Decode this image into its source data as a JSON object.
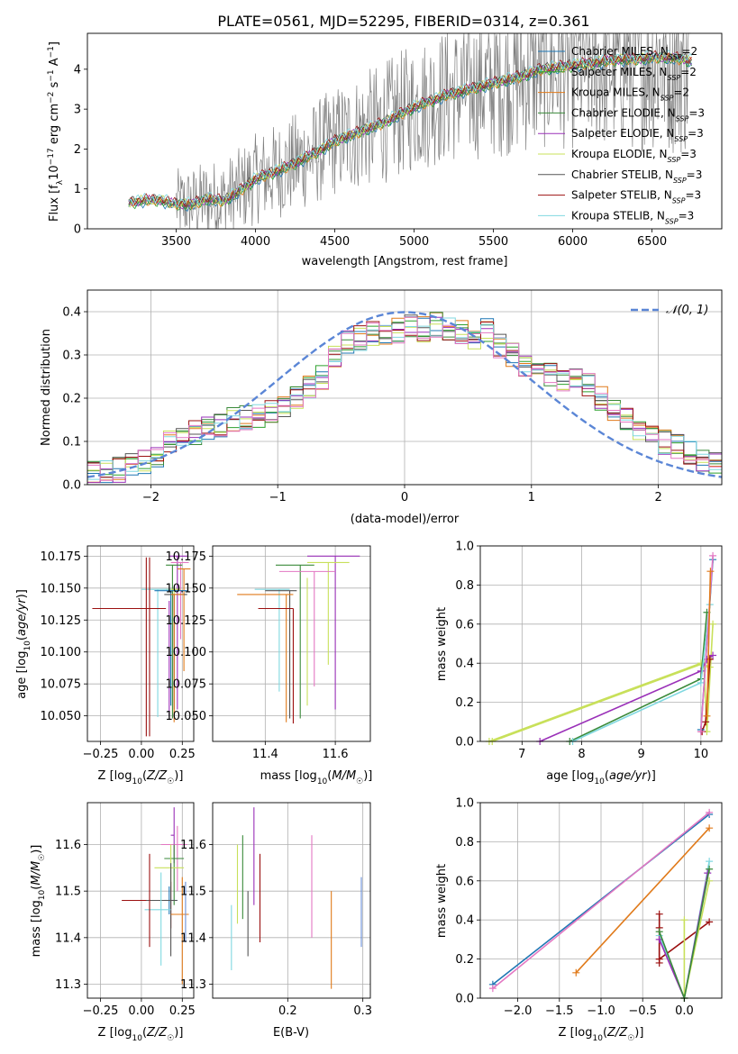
{
  "figure": {
    "title": "PLATE=0561, MJD=52295, FIBERID=0314, z=0.361"
  },
  "colors": {
    "chabrier_miles": "#1f77b4",
    "salpeter_miles": "#2ca02c",
    "kroupa_miles": "#e07a1a",
    "chabrier_elodie": "#3a8a3a",
    "salpeter_elodie": "#9a30b8",
    "kroupa_elodie": "#c8e05a",
    "chabrier_stelib": "#555555",
    "salpeter_stelib": "#9b1010",
    "kroupa_stelib": "#80d8e0",
    "pink": "#e377c2",
    "steelblue": "#6a8fd8",
    "data": "#808080",
    "normal": "#5b86d6"
  },
  "chart_data": [
    {
      "id": "spectrum",
      "type": "line",
      "title": "PLATE=0561, MJD=52295, FIBERID=0314, z=0.361",
      "xlabel": "wavelength [Angstrom, rest frame]",
      "ylabel": "Flux [f_λ 10^-17 erg cm^-2 s^-1 A^-1]",
      "xlim": [
        2940,
        6940
      ],
      "ylim": [
        0,
        4.9
      ],
      "xticks": [
        3500,
        4000,
        4500,
        5000,
        5500,
        6000,
        6500
      ],
      "yticks": [
        0,
        1,
        2,
        3,
        4
      ],
      "grid": false,
      "legend_position": "top-right",
      "legend": [
        {
          "base": "Chabrier MILES, N",
          "sub": "SSP",
          "suffix": "=2",
          "color": "#1f77b4"
        },
        {
          "base": "Salpeter MILES, N",
          "sub": "SSP",
          "suffix": "=2",
          "color": "#2ca02c"
        },
        {
          "base": "Kroupa MILES, N",
          "sub": "SSP",
          "suffix": "=2",
          "color": "#e07a1a"
        },
        {
          "base": "Chabrier ELODIE, N",
          "sub": "SSP",
          "suffix": "=3",
          "color": "#3a8a3a"
        },
        {
          "base": "Salpeter ELODIE, N",
          "sub": "SSP",
          "suffix": "=3",
          "color": "#9a30b8"
        },
        {
          "base": "Kroupa ELODIE, N",
          "sub": "SSP",
          "suffix": "=3",
          "color": "#c8e05a"
        },
        {
          "base": "Chabrier STELIB, N",
          "sub": "SSP",
          "suffix": "=3",
          "color": "#555555"
        },
        {
          "base": "Salpeter STELIB, N",
          "sub": "SSP",
          "suffix": "=3",
          "color": "#9b1010"
        },
        {
          "base": "Kroupa STELIB, N",
          "sub": "SSP",
          "suffix": "=3",
          "color": "#80d8e0"
        }
      ],
      "model_continuum": {
        "x": [
          3200,
          3300,
          3400,
          3500,
          3600,
          3700,
          3800,
          3900,
          4000,
          4100,
          4200,
          4300,
          4400,
          4500,
          4600,
          4700,
          4800,
          4900,
          5000,
          5100,
          5200,
          5300,
          5400,
          5500,
          5600,
          5700,
          5800,
          5900,
          6000,
          6100,
          6200,
          6300,
          6400,
          6500,
          6600,
          6700,
          6750
        ],
        "y": [
          0.65,
          0.72,
          0.72,
          0.62,
          0.62,
          0.75,
          0.7,
          0.95,
          1.25,
          1.4,
          1.55,
          1.75,
          1.95,
          2.2,
          2.35,
          2.5,
          2.65,
          2.85,
          3.05,
          3.2,
          3.35,
          3.45,
          3.55,
          3.65,
          3.75,
          3.85,
          4.0,
          4.05,
          4.1,
          4.15,
          4.2,
          4.25,
          4.25,
          4.3,
          4.3,
          4.25,
          4.2
        ]
      },
      "data_range": [
        3500,
        6750
      ]
    },
    {
      "id": "residuals",
      "type": "line",
      "xlabel": "(data-model)/error",
      "ylabel": "Normed distribution",
      "xlim": [
        -2.5,
        2.5
      ],
      "ylim": [
        0,
        0.45
      ],
      "xticks": [
        -2,
        -1,
        0,
        1,
        2
      ],
      "yticks": [
        0.0,
        0.1,
        0.2,
        0.3,
        0.4
      ],
      "grid": true,
      "legend_position": "top-right",
      "legend": [
        {
          "label": "𝒩(0, 1)",
          "color": "#5b86d6",
          "style": "dashed"
        }
      ],
      "bin_width": 0.1,
      "histogram_centers": [
        -2.45,
        -2.35,
        -2.25,
        -2.15,
        -2.05,
        -1.95,
        -1.85,
        -1.75,
        -1.65,
        -1.55,
        -1.45,
        -1.35,
        -1.25,
        -1.15,
        -1.05,
        -0.95,
        -0.85,
        -0.75,
        -0.65,
        -0.55,
        -0.45,
        -0.35,
        -0.25,
        -0.15,
        -0.05,
        0.05,
        0.15,
        0.25,
        0.35,
        0.45,
        0.55,
        0.65,
        0.75,
        0.85,
        0.95,
        1.05,
        1.15,
        1.25,
        1.35,
        1.45,
        1.55,
        1.65,
        1.75,
        1.85,
        1.95,
        2.05,
        2.15,
        2.25,
        2.35,
        2.45
      ],
      "histogram_mean": [
        0.025,
        0.03,
        0.035,
        0.045,
        0.055,
        0.065,
        0.1,
        0.115,
        0.12,
        0.135,
        0.14,
        0.15,
        0.155,
        0.16,
        0.17,
        0.18,
        0.2,
        0.23,
        0.25,
        0.3,
        0.33,
        0.34,
        0.35,
        0.34,
        0.355,
        0.37,
        0.36,
        0.37,
        0.36,
        0.355,
        0.34,
        0.36,
        0.32,
        0.3,
        0.28,
        0.27,
        0.255,
        0.245,
        0.24,
        0.235,
        0.2,
        0.17,
        0.15,
        0.13,
        0.12,
        0.1,
        0.09,
        0.075,
        0.06,
        0.05
      ]
    },
    {
      "id": "age_vs_Z",
      "type": "scatter",
      "xlabel": "Z [log10(Z/Z☉)]",
      "ylabel": "age [log10(age/yr)]",
      "xlim": [
        -0.33,
        0.32
      ],
      "ylim": [
        10.03,
        10.183
      ],
      "xticks": [
        -0.25,
        0.0,
        0.25
      ],
      "yticks": [
        10.05,
        10.075,
        10.1,
        10.125,
        10.15,
        10.175
      ],
      "grid": true
    },
    {
      "id": "age_vs_mass",
      "type": "scatter",
      "xlabel": "mass [log10(M/M☉)]",
      "ylabel": "",
      "xlim": [
        11.25,
        11.7
      ],
      "ylim": [
        10.03,
        10.183
      ],
      "xticks": [
        11.4,
        11.6
      ],
      "yticks": [
        10.05,
        10.075,
        10.1,
        10.125,
        10.15,
        10.175
      ],
      "grid": true
    },
    {
      "id": "weight_vs_age",
      "type": "line",
      "xlabel": "age [log10(age/yr)]",
      "ylabel": "mass weight",
      "xlim": [
        6.3,
        10.35
      ],
      "ylim": [
        0,
        1.0
      ],
      "xticks": [
        7,
        8,
        9,
        10
      ],
      "yticks": [
        0.0,
        0.2,
        0.4,
        0.6,
        0.8,
        1.0
      ],
      "grid": true
    },
    {
      "id": "mass_vs_Z",
      "type": "scatter",
      "xlabel": "Z [log10(Z/Z☉)]",
      "ylabel": "mass [log10(M/M☉)]",
      "xlim": [
        -0.33,
        0.32
      ],
      "ylim": [
        11.27,
        11.69
      ],
      "xticks": [
        -0.25,
        0.0,
        0.25
      ],
      "yticks": [
        11.3,
        11.4,
        11.5,
        11.6
      ],
      "grid": true
    },
    {
      "id": "mass_vs_ebv",
      "type": "scatter",
      "xlabel": "E(B-V)",
      "ylabel": "",
      "xlim": [
        0.1,
        0.31
      ],
      "ylim": [
        11.27,
        11.69
      ],
      "xticks": [
        0.2,
        0.3
      ],
      "yticks": [
        11.3,
        11.4,
        11.5,
        11.6
      ],
      "grid": true,
      "points": [
        {
          "x": 0.125,
          "ylo": 11.33,
          "yhi": 11.47,
          "color": "#80d8e0"
        },
        {
          "x": 0.133,
          "ylo": 11.43,
          "yhi": 11.6,
          "color": "#c8e05a"
        },
        {
          "x": 0.14,
          "ylo": 11.44,
          "yhi": 11.62,
          "color": "#3a8a3a"
        },
        {
          "x": 0.147,
          "ylo": 11.36,
          "yhi": 11.5,
          "color": "#555555"
        },
        {
          "x": 0.155,
          "ylo": 11.47,
          "yhi": 11.68,
          "color": "#9a30b8"
        },
        {
          "x": 0.163,
          "ylo": 11.39,
          "yhi": 11.58,
          "color": "#9b1010"
        },
        {
          "x": 0.232,
          "ylo": 11.4,
          "yhi": 11.62,
          "color": "#e377c2"
        },
        {
          "x": 0.258,
          "ylo": 11.29,
          "yhi": 11.5,
          "color": "#e07a1a"
        },
        {
          "x": 0.298,
          "ylo": 11.38,
          "yhi": 11.53,
          "color": "#6a8fd8"
        }
      ]
    },
    {
      "id": "weight_vs_Z",
      "type": "line",
      "xlabel": "Z [log10(Z/Z☉)]",
      "ylabel": "mass weight",
      "xlim": [
        -2.45,
        0.45
      ],
      "ylim": [
        0,
        1.0
      ],
      "xticks": [
        -2.0,
        -1.5,
        -1.0,
        -0.5,
        0.0
      ],
      "yticks": [
        0.0,
        0.2,
        0.4,
        0.6,
        0.8,
        1.0
      ],
      "grid": true
    }
  ]
}
